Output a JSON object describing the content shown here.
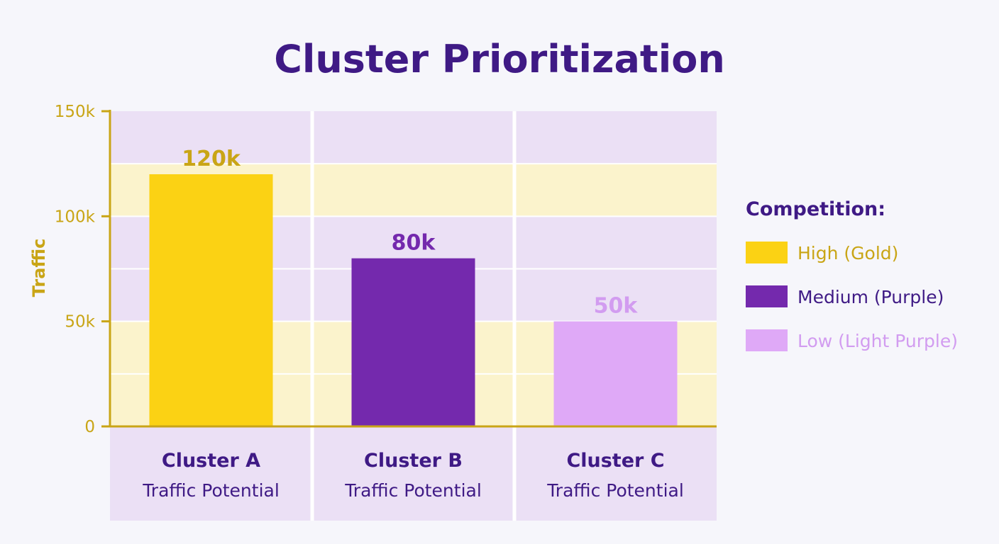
{
  "chart_data": {
    "type": "bar",
    "title": "Cluster Prioritization",
    "ylabel": "Traffic",
    "xlabel": "",
    "ylim": [
      0,
      150000
    ],
    "yticks": [
      {
        "value": 0,
        "label": "0"
      },
      {
        "value": 50000,
        "label": "50k"
      },
      {
        "value": 100000,
        "label": "100k"
      },
      {
        "value": 150000,
        "label": "150k"
      }
    ],
    "categories": [
      {
        "name": "Cluster A",
        "sub": "Traffic Potential"
      },
      {
        "name": "Cluster B",
        "sub": "Traffic Potential"
      },
      {
        "name": "Cluster C",
        "sub": "Traffic Potential"
      }
    ],
    "values": [
      120000,
      80000,
      50000
    ],
    "value_labels": [
      "120k",
      "80k",
      "50k"
    ],
    "bar_colors": [
      "#fbd214",
      "#7429ad",
      "#dfa9f7"
    ],
    "value_label_colors": [
      "#c9a516",
      "#7429ad",
      "#d29cf0"
    ],
    "grid": true,
    "legend": {
      "position": "right",
      "title": "Competition:",
      "items": [
        {
          "label": "High (Gold)",
          "color": "#fbd214",
          "text_color": "#c9a516"
        },
        {
          "label": "Medium (Purple)",
          "color": "#7429ad",
          "text_color": "#3f1a85"
        },
        {
          "label": "Low (Light Purple)",
          "color": "#dfa9f7",
          "text_color": "#d29cf0"
        }
      ]
    },
    "colors": {
      "axis": "#c9a516",
      "band_purple": "#ebe0f5",
      "band_yellow": "#fbf3cc",
      "category_panel": "#ebe0f5",
      "title": "#3f1a85"
    }
  }
}
